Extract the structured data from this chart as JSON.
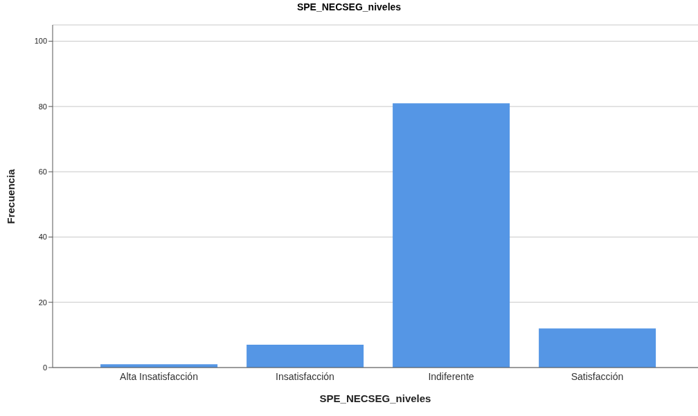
{
  "chart_data": {
    "type": "bar",
    "title": "SPE_NECSEG_niveles",
    "xlabel": "SPE_NECSEG_niveles",
    "ylabel": "Frecuencia",
    "categories": [
      "Alta Insatisfacción",
      "Insatisfacción",
      "Indiferente",
      "Satisfacción"
    ],
    "values": [
      1,
      7,
      81,
      12
    ],
    "color": "#5596e5",
    "ylim": [
      0,
      105
    ],
    "yticks": [
      0,
      20,
      40,
      60,
      80,
      100
    ],
    "grid": "y"
  }
}
